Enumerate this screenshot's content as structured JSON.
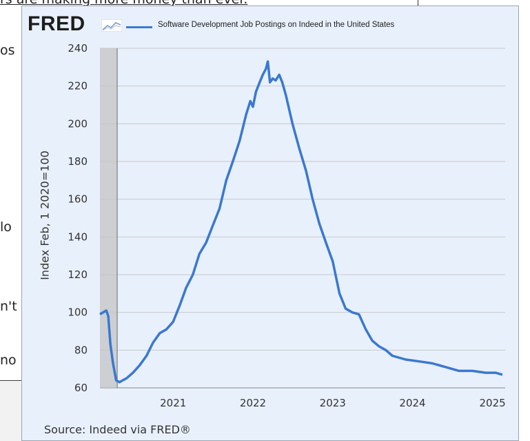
{
  "background": {
    "top_text": "rs are making more money than ever.",
    "fragments": [
      "os",
      "lo",
      "n't",
      "no"
    ]
  },
  "header": {
    "logo_text": "FRED"
  },
  "chart_data": {
    "type": "line",
    "title": "Software Development Job Postings on Indeed in the United States",
    "ylabel": "Index Feb, 1 2020=100",
    "xlabel": "",
    "source": "Source: Indeed via FRED®",
    "ylim": [
      60,
      240
    ],
    "yticks": [
      60,
      80,
      100,
      120,
      140,
      160,
      180,
      200,
      220,
      240
    ],
    "xlim": [
      "2020-02-01",
      "2025-02-28"
    ],
    "xticks": [
      "2021",
      "2022",
      "2023",
      "2024",
      "2025"
    ],
    "grid": true,
    "color": "#3a78d0",
    "series": [
      {
        "name": "Software Development Job Postings on Indeed in the United States",
        "x": [
          "2020-02-01",
          "2020-02-15",
          "2020-03-01",
          "2020-03-10",
          "2020-03-20",
          "2020-04-01",
          "2020-04-15",
          "2020-05-01",
          "2020-05-15",
          "2020-06-01",
          "2020-07-01",
          "2020-08-01",
          "2020-09-01",
          "2020-10-01",
          "2020-11-01",
          "2020-12-01",
          "2021-01-01",
          "2021-02-01",
          "2021-03-01",
          "2021-04-01",
          "2021-05-01",
          "2021-06-01",
          "2021-07-01",
          "2021-08-01",
          "2021-09-01",
          "2021-10-01",
          "2021-11-01",
          "2021-12-01",
          "2021-12-20",
          "2022-01-01",
          "2022-01-15",
          "2022-02-01",
          "2022-02-15",
          "2022-03-01",
          "2022-03-10",
          "2022-03-20",
          "2022-04-01",
          "2022-04-15",
          "2022-05-01",
          "2022-05-15",
          "2022-06-01",
          "2022-07-01",
          "2022-08-01",
          "2022-09-01",
          "2022-10-01",
          "2022-11-01",
          "2022-12-01",
          "2023-01-01",
          "2023-02-01",
          "2023-03-01",
          "2023-04-01",
          "2023-05-01",
          "2023-06-01",
          "2023-07-01",
          "2023-08-01",
          "2023-09-01",
          "2023-10-01",
          "2023-12-01",
          "2024-02-01",
          "2024-04-01",
          "2024-06-01",
          "2024-08-01",
          "2024-10-01",
          "2024-12-01",
          "2025-01-15",
          "2025-02-15"
        ],
        "values": [
          99,
          100,
          101,
          98,
          83,
          73,
          64,
          63,
          64,
          65,
          68,
          72,
          77,
          84,
          89,
          91,
          95,
          104,
          113,
          120,
          131,
          137,
          146,
          155,
          170,
          180,
          191,
          205,
          212,
          209,
          217,
          222,
          226,
          229,
          233,
          222,
          224,
          223,
          226,
          222,
          215,
          200,
          187,
          175,
          160,
          147,
          137,
          127,
          110,
          102,
          100,
          99,
          91,
          85,
          82,
          80,
          77,
          75,
          74,
          73,
          71,
          69,
          69,
          68,
          68,
          67
        ]
      }
    ]
  }
}
